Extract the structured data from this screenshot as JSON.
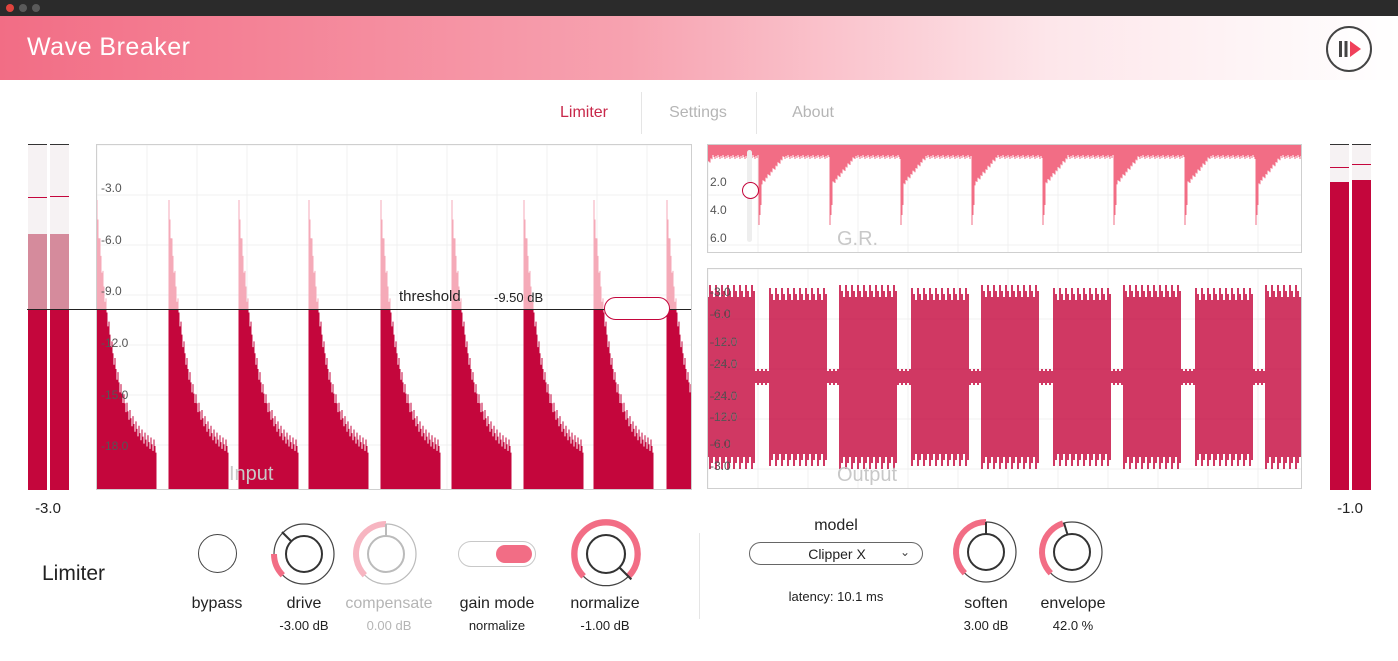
{
  "window": {
    "traffic_lights": [
      "close",
      "minimize",
      "zoom"
    ]
  },
  "app": {
    "title": "Wave Breaker",
    "logo_icon": "pause-play-icon"
  },
  "colors": {
    "accent": "#c4063c",
    "accent_light": "#f26d85",
    "ghost": "#f5aab8"
  },
  "tabs": [
    {
      "label": "Limiter",
      "active": true
    },
    {
      "label": "Settings",
      "active": false
    },
    {
      "label": "About",
      "active": false
    }
  ],
  "meters": {
    "input": {
      "value_label": "-3.0"
    },
    "output": {
      "value_label": "-1.0"
    }
  },
  "input_panel": {
    "name": "Input",
    "axis": [
      "-3.0",
      "-6.0",
      "-9.0",
      "-12.0",
      "-15.0",
      "-18.0"
    ],
    "threshold_label": "threshold",
    "threshold_value": "-9.50 dB"
  },
  "gr_panel": {
    "name": "G.R.",
    "axis": [
      "2.0",
      "4.0",
      "6.0"
    ]
  },
  "output_panel": {
    "name": "Output",
    "axis": [
      "-3.0",
      "-6.0",
      "-12.0",
      "-24.0",
      "-24.0",
      "-12.0",
      "-6.0",
      "-3.0"
    ]
  },
  "limiter": {
    "section_title": "Limiter",
    "bypass": {
      "label": "bypass"
    },
    "drive": {
      "label": "drive",
      "value": "-3.00 dB"
    },
    "compensate": {
      "label": "compensate",
      "value": "0.00 dB"
    },
    "gain_mode": {
      "label": "gain mode",
      "value": "normalize"
    },
    "normalize": {
      "label": "normalize",
      "value": "-1.00 dB"
    }
  },
  "clipper": {
    "model": {
      "label": "model",
      "value": "Clipper X",
      "latency": "latency: 10.1 ms"
    },
    "soften": {
      "label": "soften",
      "value": "3.00 dB"
    },
    "envelope": {
      "label": "envelope",
      "value": "42.0 %"
    }
  }
}
